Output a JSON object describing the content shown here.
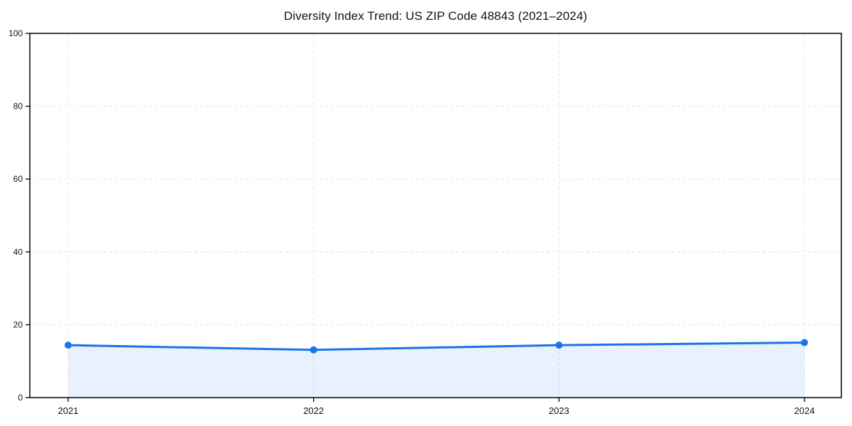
{
  "page": {
    "background": "#ffffff"
  },
  "chart_data": {
    "type": "area",
    "title": "Diversity Index Trend: US ZIP Code 48843 (2021–2024)",
    "x": [
      "2021",
      "2022",
      "2023",
      "2024"
    ],
    "series": [
      {
        "name": "Diversity Index",
        "color": "#1a73e8",
        "values": [
          14.4,
          13.1,
          14.4,
          15.1
        ]
      }
    ],
    "xlabel": "",
    "ylabel": "",
    "ylim": [
      0,
      100
    ],
    "yticks": [
      0,
      20,
      40,
      60,
      80,
      100
    ],
    "grid": {
      "visible": true,
      "style": "dashed",
      "color": "#e4e4e4",
      "axes": "both"
    },
    "legend": {
      "visible": false
    },
    "marker": {
      "shape": "circle",
      "radius": 5
    },
    "line_width": 3,
    "area_fill_opacity": 0.1,
    "spine_color": "#000000",
    "tick_label_color": "#111111"
  }
}
